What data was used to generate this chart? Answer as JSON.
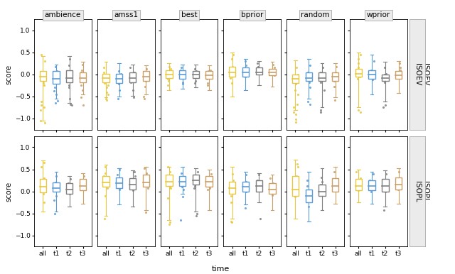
{
  "row_labels": [
    "ISOEV",
    "ISOPL"
  ],
  "col_labels": [
    "ambience",
    "amss1",
    "best",
    "bprior",
    "random",
    "wprior"
  ],
  "time_labels": [
    "all",
    "t1",
    "t2",
    "t3"
  ],
  "colors": {
    "all": "#E8C840",
    "t1": "#5B9BD5",
    "t2": "#7F7F7F",
    "t3": "#C8A068"
  },
  "ylim": [
    -1.2,
    1.2
  ],
  "yticks": [
    -1.0,
    -0.5,
    0.0,
    0.5,
    1.0
  ],
  "xlabel": "time",
  "ylabel": "score",
  "seed": 42,
  "box_data": {
    "ISOEV": {
      "ambience": {
        "all": {
          "q1": -0.15,
          "median": -0.05,
          "q3": 0.08,
          "whislo": -1.05,
          "whishi": 0.42
        },
        "t1": {
          "q1": -0.22,
          "median": -0.1,
          "q3": 0.08,
          "whislo": -0.55,
          "whishi": 0.22
        },
        "t2": {
          "q1": -0.18,
          "median": -0.08,
          "q3": 0.1,
          "whislo": -0.65,
          "whishi": 0.42
        },
        "t3": {
          "q1": -0.18,
          "median": -0.08,
          "q3": 0.05,
          "whislo": -0.45,
          "whishi": 0.28
        }
      },
      "amss1": {
        "all": {
          "q1": -0.18,
          "median": -0.08,
          "q3": 0.02,
          "whislo": -0.52,
          "whishi": 0.28
        },
        "t1": {
          "q1": -0.2,
          "median": -0.1,
          "q3": 0.02,
          "whislo": -0.5,
          "whishi": 0.25
        },
        "t2": {
          "q1": -0.18,
          "median": -0.08,
          "q3": 0.05,
          "whislo": -0.48,
          "whishi": 0.22
        },
        "t3": {
          "q1": -0.15,
          "median": -0.05,
          "q3": 0.08,
          "whislo": -0.45,
          "whishi": 0.2
        }
      },
      "best": {
        "all": {
          "q1": -0.08,
          "median": 0.0,
          "q3": 0.1,
          "whislo": -0.35,
          "whishi": 0.25
        },
        "t1": {
          "q1": -0.1,
          "median": 0.0,
          "q3": 0.1,
          "whislo": -0.32,
          "whishi": 0.22
        },
        "t2": {
          "q1": -0.08,
          "median": 0.0,
          "q3": 0.08,
          "whislo": -0.3,
          "whishi": 0.22
        },
        "t3": {
          "q1": -0.1,
          "median": -0.02,
          "q3": 0.08,
          "whislo": -0.35,
          "whishi": 0.2
        }
      },
      "bprior": {
        "all": {
          "q1": -0.05,
          "median": 0.05,
          "q3": 0.18,
          "whislo": -0.5,
          "whishi": 0.5
        },
        "t1": {
          "q1": -0.05,
          "median": 0.05,
          "q3": 0.15,
          "whislo": -0.35,
          "whishi": 0.35
        },
        "t2": {
          "q1": 0.0,
          "median": 0.05,
          "q3": 0.15,
          "whislo": -0.25,
          "whishi": 0.3
        },
        "t3": {
          "q1": -0.02,
          "median": 0.05,
          "q3": 0.12,
          "whislo": -0.28,
          "whishi": 0.28
        }
      },
      "random": {
        "all": {
          "q1": -0.2,
          "median": -0.1,
          "q3": 0.0,
          "whislo": -0.8,
          "whishi": 0.32
        },
        "t1": {
          "q1": -0.15,
          "median": -0.08,
          "q3": 0.05,
          "whislo": -0.55,
          "whishi": 0.35
        },
        "t2": {
          "q1": -0.15,
          "median": -0.08,
          "q3": 0.05,
          "whislo": -0.75,
          "whishi": 0.25
        },
        "t3": {
          "q1": -0.15,
          "median": -0.05,
          "q3": 0.05,
          "whislo": -0.52,
          "whishi": 0.25
        }
      },
      "wprior": {
        "all": {
          "q1": -0.05,
          "median": 0.02,
          "q3": 0.12,
          "whislo": -0.75,
          "whishi": 0.5
        },
        "t1": {
          "q1": -0.1,
          "median": 0.0,
          "q3": 0.1,
          "whislo": -0.45,
          "whishi": 0.45
        },
        "t2": {
          "q1": -0.15,
          "median": -0.08,
          "q3": 0.0,
          "whislo": -0.62,
          "whishi": 0.28
        },
        "t3": {
          "q1": -0.1,
          "median": -0.02,
          "q3": 0.08,
          "whislo": -0.42,
          "whishi": 0.3
        }
      }
    },
    "ISOPL": {
      "ambience": {
        "all": {
          "q1": -0.02,
          "median": 0.1,
          "q3": 0.28,
          "whislo": -0.45,
          "whishi": 0.7
        },
        "t1": {
          "q1": 0.0,
          "median": 0.08,
          "q3": 0.2,
          "whislo": -0.45,
          "whishi": 0.45
        },
        "t2": {
          "q1": -0.05,
          "median": 0.05,
          "q3": 0.18,
          "whislo": -0.35,
          "whishi": 0.35
        },
        "t3": {
          "q1": 0.02,
          "median": 0.12,
          "q3": 0.28,
          "whislo": -0.28,
          "whishi": 0.42
        }
      },
      "amss1": {
        "all": {
          "q1": 0.1,
          "median": 0.2,
          "q3": 0.35,
          "whislo": -0.55,
          "whishi": 0.6
        },
        "t1": {
          "q1": 0.08,
          "median": 0.18,
          "q3": 0.32,
          "whislo": -0.3,
          "whishi": 0.52
        },
        "t2": {
          "q1": 0.05,
          "median": 0.15,
          "q3": 0.3,
          "whislo": -0.35,
          "whishi": 0.48
        },
        "t3": {
          "q1": 0.1,
          "median": 0.2,
          "q3": 0.38,
          "whislo": -0.42,
          "whishi": 0.55
        }
      },
      "best": {
        "all": {
          "q1": 0.12,
          "median": 0.22,
          "q3": 0.38,
          "whislo": -0.65,
          "whishi": 0.55
        },
        "t1": {
          "q1": 0.12,
          "median": 0.22,
          "q3": 0.35,
          "whislo": -0.05,
          "whishi": 0.55
        },
        "t2": {
          "q1": 0.15,
          "median": 0.25,
          "q3": 0.38,
          "whislo": -0.45,
          "whishi": 0.52
        },
        "t3": {
          "q1": 0.1,
          "median": 0.22,
          "q3": 0.35,
          "whislo": -0.42,
          "whishi": 0.5
        }
      },
      "bprior": {
        "all": {
          "q1": -0.05,
          "median": 0.08,
          "q3": 0.22,
          "whislo": -0.62,
          "whishi": 0.55
        },
        "t1": {
          "q1": 0.0,
          "median": 0.1,
          "q3": 0.22,
          "whislo": -0.3,
          "whishi": 0.45
        },
        "t2": {
          "q1": 0.0,
          "median": 0.12,
          "q3": 0.25,
          "whislo": -0.25,
          "whishi": 0.42
        },
        "t3": {
          "q1": -0.05,
          "median": 0.05,
          "q3": 0.18,
          "whislo": -0.42,
          "whishi": 0.38
        }
      },
      "random": {
        "all": {
          "q1": -0.1,
          "median": 0.05,
          "q3": 0.35,
          "whislo": -0.62,
          "whishi": 0.72
        },
        "t1": {
          "q1": -0.25,
          "median": -0.1,
          "q3": 0.05,
          "whislo": -0.68,
          "whishi": 0.45
        },
        "t2": {
          "q1": -0.1,
          "median": 0.0,
          "q3": 0.15,
          "whislo": -0.42,
          "whishi": 0.52
        },
        "t3": {
          "q1": 0.0,
          "median": 0.12,
          "q3": 0.3,
          "whislo": -0.28,
          "whishi": 0.55
        }
      },
      "wprior": {
        "all": {
          "q1": 0.02,
          "median": 0.12,
          "q3": 0.28,
          "whislo": -0.25,
          "whishi": 0.5
        },
        "t1": {
          "q1": 0.02,
          "median": 0.12,
          "q3": 0.25,
          "whislo": -0.28,
          "whishi": 0.45
        },
        "t2": {
          "q1": 0.0,
          "median": 0.12,
          "q3": 0.28,
          "whislo": -0.35,
          "whishi": 0.48
        },
        "t3": {
          "q1": 0.05,
          "median": 0.15,
          "q3": 0.32,
          "whislo": -0.28,
          "whishi": 0.52
        }
      }
    }
  },
  "scatter_data": {
    "ISOEV": {
      "ambience": {
        "all": [
          -0.05,
          -0.1,
          0.05,
          -0.2,
          -0.62,
          -0.7,
          -0.8,
          0.3,
          -0.15,
          -0.25,
          -1.05,
          -1.1,
          -0.75,
          0.45
        ],
        "t1": [
          -0.12,
          0.08,
          -0.2,
          -0.3,
          0.18,
          -0.05,
          0.0,
          -0.45,
          -0.38,
          -0.6,
          -0.65
        ],
        "t2": [
          -0.1,
          0.05,
          -0.15,
          -0.25,
          0.2,
          0.35,
          -0.3,
          -0.05,
          -0.55,
          -0.68,
          -0.7
        ],
        "t3": [
          -0.05,
          -0.15,
          0.1,
          -0.25,
          0.22,
          -0.35,
          -0.08,
          0.05,
          -0.52,
          -0.7
        ]
      },
      "amss1": {
        "all": [
          -0.1,
          -0.05,
          -0.2,
          -0.3,
          0.15,
          -0.4,
          0.05,
          -0.25,
          -0.45,
          -0.55,
          -0.58
        ],
        "t1": [
          -0.15,
          -0.05,
          -0.22,
          0.08,
          -0.35,
          -0.1,
          0.02,
          -0.55
        ],
        "t2": [
          -0.12,
          0.02,
          -0.18,
          -0.35,
          0.15,
          -0.08,
          0.05,
          -0.52
        ],
        "t3": [
          -0.08,
          0.05,
          -0.15,
          -0.28,
          0.12,
          -0.05,
          0.02,
          -0.5,
          -0.55
        ]
      },
      "best": {
        "all": [
          0.05,
          -0.05,
          0.12,
          -0.15,
          0.0,
          -0.25,
          0.18,
          -0.1,
          0.08
        ],
        "t1": [
          0.02,
          -0.08,
          0.1,
          -0.18,
          0.05,
          -0.22,
          0.15
        ],
        "t2": [
          0.05,
          -0.05,
          0.08,
          -0.15,
          0.05,
          -0.2,
          0.12
        ],
        "t3": [
          0.0,
          -0.1,
          0.08,
          -0.2,
          0.05,
          -0.25,
          0.1
        ]
      },
      "bprior": {
        "all": [
          0.08,
          0.0,
          0.18,
          -0.2,
          0.35,
          0.12,
          0.45,
          -0.08
        ],
        "t1": [
          0.05,
          0.1,
          -0.05,
          0.2,
          0.3,
          0.0
        ],
        "t2": [
          0.08,
          0.12,
          0.02,
          0.18,
          0.25,
          0.05
        ],
        "t3": [
          0.05,
          0.08,
          -0.02,
          0.15,
          0.22,
          0.0
        ]
      },
      "random": {
        "all": [
          -0.12,
          -0.05,
          -0.22,
          0.15,
          -0.35,
          0.0,
          -0.45,
          -0.68,
          -0.75,
          -0.85,
          -0.9,
          -1.02,
          -1.08
        ],
        "t1": [
          -0.08,
          0.02,
          -0.18,
          0.2,
          -0.3,
          0.05,
          -0.62,
          -0.68
        ],
        "t2": [
          -0.08,
          0.0,
          -0.18,
          0.15,
          -0.35,
          0.05,
          -0.8,
          -0.85
        ],
        "t3": [
          -0.05,
          0.02,
          -0.15,
          0.18,
          -0.28,
          0.05,
          -0.58
        ]
      },
      "wprior": {
        "all": [
          0.05,
          -0.05,
          0.15,
          0.35,
          0.0,
          0.45,
          -0.1,
          0.25,
          -0.8,
          -0.85
        ],
        "t1": [
          0.05,
          -0.05,
          0.1,
          0.3,
          0.0,
          -0.12
        ],
        "t2": [
          -0.05,
          -0.1,
          0.02,
          -0.18,
          0.15,
          0.0,
          -0.7,
          -0.75
        ],
        "t3": [
          0.05,
          -0.08,
          0.1,
          0.25,
          -0.05,
          0.15
        ]
      }
    },
    "ISOPL": {
      "ambience": {
        "all": [
          0.08,
          0.18,
          -0.05,
          0.3,
          0.55,
          0.12,
          0.65,
          0.0,
          0.22,
          -0.25
        ],
        "t1": [
          0.05,
          0.12,
          -0.1,
          0.2,
          0.35,
          0.08,
          0.15,
          -0.2,
          -0.5
        ],
        "t2": [
          0.02,
          0.1,
          -0.05,
          0.18,
          0.28,
          0.05,
          0.12
        ],
        "t3": [
          0.1,
          0.18,
          0.05,
          0.25,
          0.35,
          0.08,
          0.15
        ]
      },
      "amss1": {
        "all": [
          0.18,
          0.08,
          0.28,
          0.42,
          0.55,
          0.12,
          0.35,
          -0.1,
          0.22,
          -0.62
        ],
        "t1": [
          0.15,
          0.05,
          0.25,
          0.38,
          0.5,
          0.1,
          0.3
        ],
        "t2": [
          0.12,
          0.02,
          0.22,
          0.35,
          0.45,
          0.08,
          0.28
        ],
        "t3": [
          0.18,
          0.08,
          0.28,
          0.42,
          0.52,
          0.12,
          0.35,
          -0.48
        ]
      },
      "best": {
        "all": [
          0.18,
          0.08,
          0.3,
          0.45,
          0.22,
          0.35,
          0.1,
          -0.15,
          0.55,
          -0.7,
          -0.75
        ],
        "t1": [
          0.18,
          0.1,
          0.28,
          0.42,
          0.2,
          0.32,
          0.05,
          -0.12,
          -0.65
        ],
        "t2": [
          0.2,
          0.12,
          0.3,
          0.45,
          0.22,
          0.35,
          0.08,
          -0.5,
          -0.55
        ],
        "t3": [
          0.15,
          0.08,
          0.25,
          0.4,
          0.18,
          0.3,
          0.05
        ]
      },
      "bprior": {
        "all": [
          0.05,
          0.15,
          -0.1,
          0.25,
          0.4,
          0.08,
          0.2,
          -0.25,
          -0.68,
          -0.7
        ],
        "t1": [
          0.08,
          0.15,
          0.0,
          0.22,
          0.38,
          0.05,
          -0.38
        ],
        "t2": [
          0.08,
          0.18,
          0.02,
          0.25,
          0.38,
          0.08,
          -0.62
        ],
        "t3": [
          0.02,
          0.1,
          -0.08,
          0.18,
          0.3,
          0.05
        ]
      },
      "random": {
        "all": [
          0.05,
          0.18,
          -0.08,
          0.35,
          0.55,
          0.0,
          0.62,
          -0.12,
          0.28
        ],
        "t1": [
          -0.08,
          -0.18,
          0.02,
          -0.35,
          0.12,
          -0.05,
          0.25
        ],
        "t2": [
          0.0,
          0.1,
          -0.05,
          0.15,
          0.32,
          0.05,
          0.22
        ],
        "t3": [
          0.1,
          0.18,
          0.02,
          0.28,
          0.45,
          0.08,
          0.25
        ]
      },
      "wprior": {
        "all": [
          0.1,
          0.2,
          0.02,
          0.3,
          0.45,
          0.08,
          0.22
        ],
        "t1": [
          0.08,
          0.18,
          0.0,
          0.25,
          0.4,
          0.05
        ],
        "t2": [
          0.08,
          0.15,
          0.0,
          0.25,
          0.4,
          0.05,
          -0.42
        ],
        "t3": [
          0.12,
          0.22,
          0.05,
          0.28,
          0.45,
          0.08
        ]
      }
    }
  }
}
